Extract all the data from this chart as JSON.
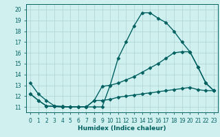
{
  "line1_x": [
    0,
    1,
    2,
    3,
    4,
    5,
    6,
    7,
    8,
    9,
    10,
    11,
    12,
    13,
    14,
    15,
    16,
    17,
    18,
    19,
    20,
    21,
    22,
    23
  ],
  "line1_y": [
    13.2,
    12.2,
    11.6,
    11.1,
    11.05,
    11.0,
    11.0,
    11.0,
    11.0,
    11.0,
    13.0,
    15.5,
    17.0,
    18.5,
    19.7,
    19.7,
    19.2,
    18.8,
    18.0,
    17.0,
    16.1,
    14.7,
    13.2,
    12.5
  ],
  "line2_x": [
    0,
    1,
    2,
    3,
    4,
    5,
    6,
    7,
    8,
    9,
    10,
    11,
    12,
    13,
    14,
    15,
    16,
    17,
    18,
    19,
    20,
    21,
    22,
    23
  ],
  "line2_y": [
    12.2,
    11.6,
    11.1,
    11.05,
    11.0,
    11.0,
    11.0,
    11.0,
    11.6,
    12.9,
    13.0,
    13.2,
    13.5,
    13.8,
    14.2,
    14.6,
    15.0,
    15.5,
    16.0,
    16.1,
    16.1,
    14.7,
    13.2,
    12.5
  ],
  "line3_x": [
    0,
    1,
    2,
    3,
    4,
    5,
    6,
    7,
    8,
    9,
    10,
    11,
    12,
    13,
    14,
    15,
    16,
    17,
    18,
    19,
    20,
    21,
    22,
    23
  ],
  "line3_y": [
    12.2,
    11.6,
    11.1,
    11.05,
    11.0,
    11.0,
    11.0,
    11.0,
    11.6,
    11.6,
    11.7,
    11.9,
    12.0,
    12.1,
    12.2,
    12.3,
    12.4,
    12.5,
    12.6,
    12.7,
    12.8,
    12.6,
    12.5,
    12.5
  ],
  "line_color": "#006060",
  "bg_color": "#d0f0f0",
  "grid_color": "#b0d8d8",
  "xlabel": "Humidex (Indice chaleur)",
  "ylim": [
    10.5,
    20.5
  ],
  "xlim": [
    -0.5,
    23.5
  ],
  "yticks": [
    11,
    12,
    13,
    14,
    15,
    16,
    17,
    18,
    19,
    20
  ],
  "xticks": [
    0,
    1,
    2,
    3,
    4,
    5,
    6,
    7,
    8,
    9,
    10,
    11,
    12,
    13,
    14,
    15,
    16,
    17,
    18,
    19,
    20,
    21,
    22,
    23
  ],
  "xtick_labels": [
    "0",
    "1",
    "2",
    "3",
    "4",
    "5",
    "6",
    "7",
    "8",
    "9",
    "10",
    "11",
    "12",
    "13",
    "14",
    "15",
    "16",
    "17",
    "18",
    "19",
    "20",
    "21",
    "22",
    "23"
  ],
  "marker": "D",
  "markersize": 2.5,
  "linewidth": 1.0,
  "tick_fontsize": 5.5,
  "xlabel_fontsize": 6.5
}
